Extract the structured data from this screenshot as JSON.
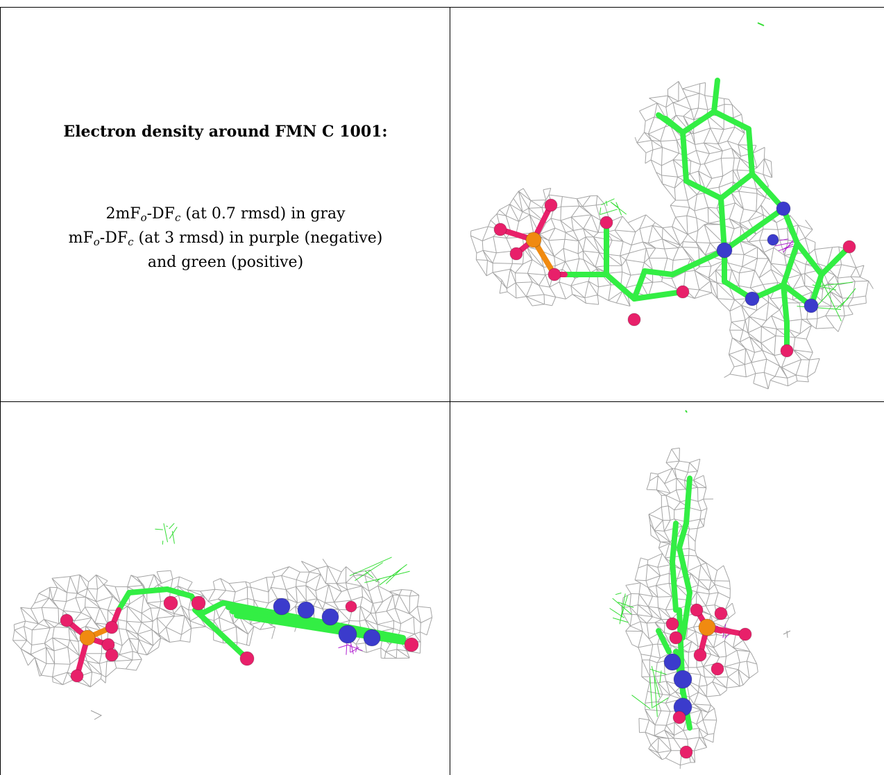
{
  "caption": {
    "title": "Electron density around FMN C 1001:",
    "line1": {
      "base": "2mF",
      "sub1": "o",
      "mid": "-DF",
      "sub2": "c",
      "rest": " (at 0.7 rmsd) in gray"
    },
    "line2": {
      "base": "mF",
      "sub1": "o",
      "mid": "-DF",
      "sub2": "c",
      "rest": " (at 3 rmsd) in purple (negative)"
    },
    "line3": "and green (positive)"
  },
  "colors": {
    "mesh_gray": "#9a9a9a",
    "carbon_green": "#33ee44",
    "nitrogen_blue": "#3b3bcc",
    "oxygen_red": "#e8206a",
    "phosphorus_orange": "#f08a10",
    "negative_purple": "#b020d0",
    "positive_green": "#33dd33"
  },
  "panels": [
    {
      "id": "top-right-view",
      "description_icon": "molecule-view"
    },
    {
      "id": "bottom-left-view",
      "description_icon": "molecule-view"
    },
    {
      "id": "bottom-right-view",
      "description_icon": "molecule-view"
    }
  ]
}
